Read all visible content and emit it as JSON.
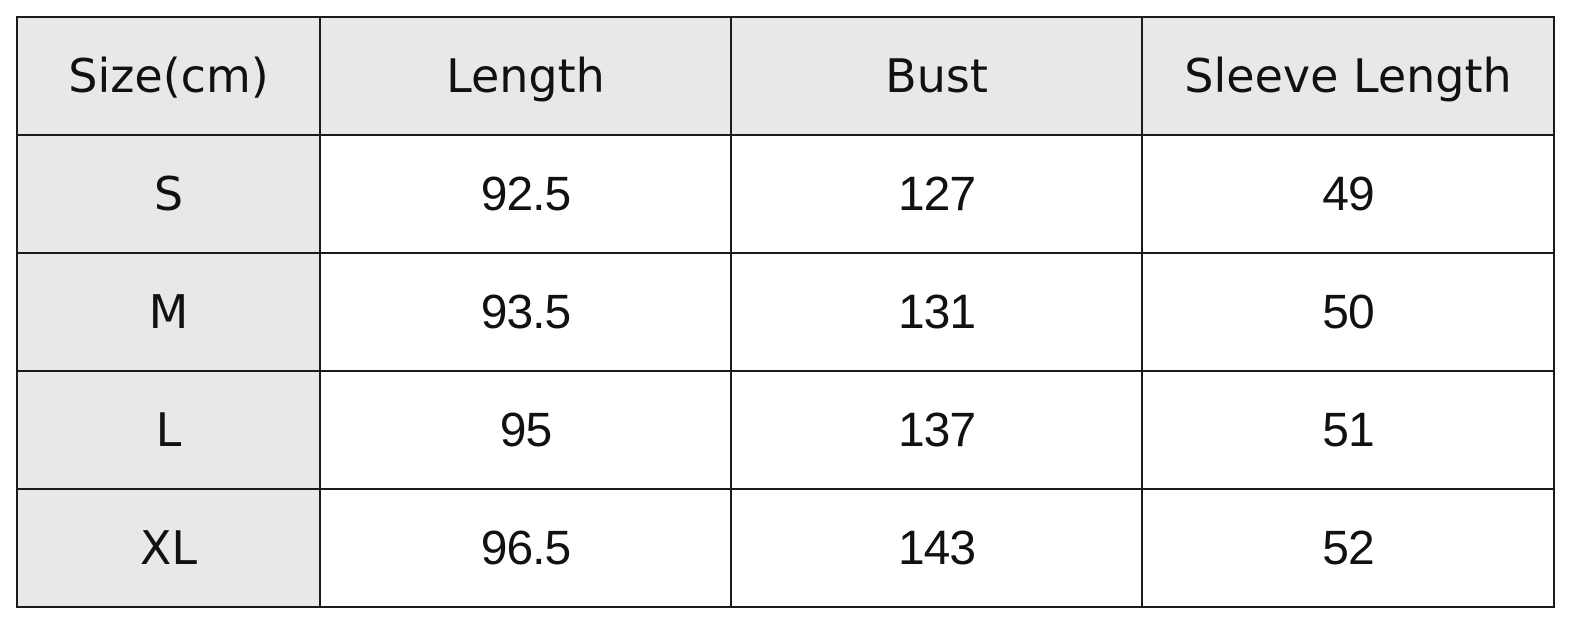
{
  "table": {
    "headers": [
      "Size(cm)",
      "Length",
      "Bust",
      "Sleeve Length"
    ],
    "rows": [
      [
        "S",
        "92.5",
        "127",
        "49"
      ],
      [
        "M",
        "93.5",
        "131",
        "50"
      ],
      [
        "L",
        "95",
        "137",
        "51"
      ],
      [
        "XL",
        "96.5",
        "143",
        "52"
      ]
    ]
  },
  "colors": {
    "header_bg": "#e8e8e8",
    "border": "#1a1a1a"
  }
}
